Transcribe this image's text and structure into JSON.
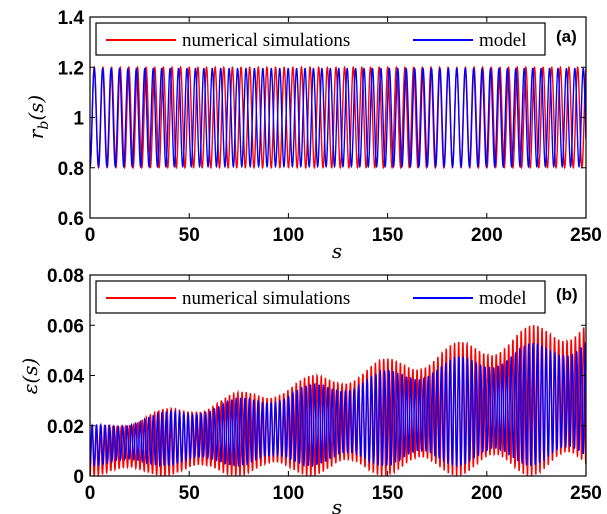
{
  "chart_data": [
    {
      "panel_label": "(a)",
      "type": "line",
      "xlabel": "s",
      "ylabel": "r_b(s)",
      "xlim": [
        0,
        250
      ],
      "ylim": [
        0.6,
        1.4
      ],
      "xticks": [
        "0",
        "50",
        "100",
        "150",
        "200",
        "250"
      ],
      "yticks": [
        "0.6",
        "0.8",
        "1",
        "1.2",
        "1.4"
      ],
      "legend_position": "top",
      "grid": false,
      "series": [
        {
          "name": "numerical simulations",
          "color": "#ff0000",
          "form": "oscillation",
          "mean": 1.0,
          "amplitude": 0.2,
          "period": 4.35,
          "phase": 0.0
        },
        {
          "name": "model",
          "color": "#0000ff",
          "form": "oscillation",
          "mean": 1.0,
          "amplitude": 0.195,
          "period": 4.25,
          "phase": 0.0
        }
      ]
    },
    {
      "panel_label": "(b)",
      "type": "line",
      "xlabel": "s",
      "ylabel": "ε(s)",
      "xlim": [
        0,
        250
      ],
      "ylim": [
        0,
        0.08
      ],
      "xticks": [
        "0",
        "50",
        "100",
        "150",
        "200",
        "250"
      ],
      "yticks": [
        "0",
        "0.02",
        "0.04",
        "0.06",
        "0.08"
      ],
      "legend_position": "top",
      "grid": false,
      "series": [
        {
          "name": "numerical simulations",
          "color": "#ff0000",
          "form": "growing-oscillation",
          "envelope_max_start": 0.02,
          "envelope_max_end": 0.065,
          "envelope_min_start": 0.0,
          "envelope_min_end": 0.0,
          "period": 2.1
        },
        {
          "name": "model",
          "color": "#0000ff",
          "form": "growing-oscillation",
          "envelope_max_start": 0.02,
          "envelope_max_end": 0.057,
          "envelope_min_start": 0.004,
          "envelope_min_end": 0.004,
          "period": 2.2
        }
      ]
    }
  ]
}
